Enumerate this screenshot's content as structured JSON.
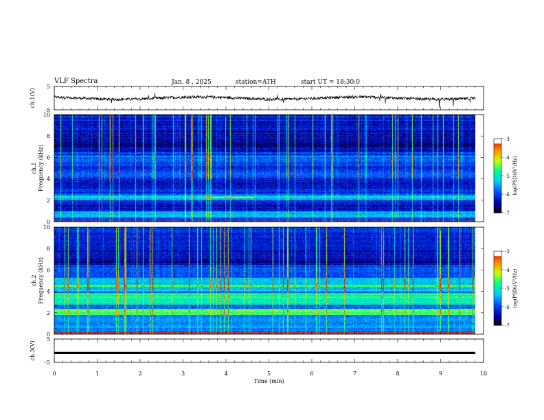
{
  "header": {
    "title": "VLF  Spectra",
    "date": "Jan.  8  , 2025",
    "station": "station=ATH",
    "start": "start  UT  =   18:30:0"
  },
  "chart_data": [
    {
      "type": "line",
      "panel": "ch1-waveform",
      "ylabel": "ch.1(V)",
      "ylim": [
        -5,
        5
      ],
      "yticks": [
        5,
        -5
      ],
      "xlim": [
        0,
        10
      ],
      "series_description": "noisy waveform around 0 V with sparse spikes",
      "baseline": 0,
      "amplitude": 0.8
    },
    {
      "type": "heatmap",
      "panel": "ch1-spectrogram",
      "ylabel": "ch.1",
      "ylabel2": "Frequency  (kHz)",
      "ylim": [
        0,
        10
      ],
      "yticks": [
        0,
        2,
        4,
        6,
        8,
        10
      ],
      "xlim": [
        0,
        9.8
      ],
      "colorbar": {
        "label": "log(PSD)(V²/Hz)",
        "range": [
          -7,
          -3
        ],
        "ticks": [
          "-3",
          "-4",
          "-5",
          "-6",
          "-7"
        ]
      }
    },
    {
      "type": "heatmap",
      "panel": "ch2-spectrogram",
      "ylabel": "ch.2",
      "ylabel2": "Frequency  (kHz)",
      "ylim": [
        0,
        10
      ],
      "yticks": [
        0,
        2,
        4,
        6,
        8,
        10
      ],
      "xlim": [
        0,
        9.8
      ],
      "colorbar": {
        "label": "log(PSD)(V²/Hz)",
        "range": [
          -7,
          -3
        ],
        "ticks": [
          "-3",
          "-4",
          "-5",
          "-6",
          "-7"
        ]
      }
    },
    {
      "type": "line",
      "panel": "ch3-waveform",
      "ylabel": "ch.3(V)",
      "ylim": [
        -5,
        5
      ],
      "yticks": [
        5,
        -5
      ],
      "xlim": [
        0,
        10
      ],
      "series_description": "flat thick line at about -1 V",
      "baseline": -1
    }
  ],
  "x_axis": {
    "label": "Time  (min)",
    "ticks": [
      "0",
      "1",
      "2",
      "3",
      "4",
      "5",
      "6",
      "7",
      "8",
      "9",
      "10"
    ]
  },
  "colors": {
    "cmap": [
      "#000000",
      "#0000b0",
      "#0050ff",
      "#00ccff",
      "#00ff88",
      "#ccff00",
      "#ff8800",
      "#e00000",
      "#ffffff"
    ],
    "frame": "#000000"
  }
}
